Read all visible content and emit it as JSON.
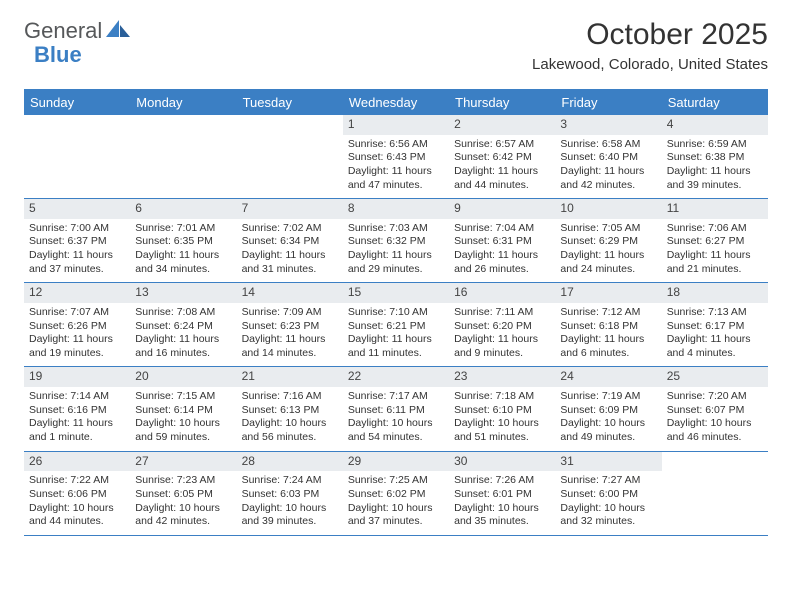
{
  "brand": {
    "name_part1": "General",
    "name_part2": "Blue"
  },
  "title": "October 2025",
  "location": "Lakewood, Colorado, United States",
  "colors": {
    "accent": "#3b7fc4",
    "text": "#333333",
    "daybar": "#e9ecef",
    "logo_gray": "#56585a"
  },
  "day_headers": [
    "Sunday",
    "Monday",
    "Tuesday",
    "Wednesday",
    "Thursday",
    "Friday",
    "Saturday"
  ],
  "weeks": [
    [
      {
        "day": "",
        "lines": []
      },
      {
        "day": "",
        "lines": []
      },
      {
        "day": "",
        "lines": []
      },
      {
        "day": "1",
        "lines": [
          "Sunrise: 6:56 AM",
          "Sunset: 6:43 PM",
          "Daylight: 11 hours",
          "and 47 minutes."
        ]
      },
      {
        "day": "2",
        "lines": [
          "Sunrise: 6:57 AM",
          "Sunset: 6:42 PM",
          "Daylight: 11 hours",
          "and 44 minutes."
        ]
      },
      {
        "day": "3",
        "lines": [
          "Sunrise: 6:58 AM",
          "Sunset: 6:40 PM",
          "Daylight: 11 hours",
          "and 42 minutes."
        ]
      },
      {
        "day": "4",
        "lines": [
          "Sunrise: 6:59 AM",
          "Sunset: 6:38 PM",
          "Daylight: 11 hours",
          "and 39 minutes."
        ]
      }
    ],
    [
      {
        "day": "5",
        "lines": [
          "Sunrise: 7:00 AM",
          "Sunset: 6:37 PM",
          "Daylight: 11 hours",
          "and 37 minutes."
        ]
      },
      {
        "day": "6",
        "lines": [
          "Sunrise: 7:01 AM",
          "Sunset: 6:35 PM",
          "Daylight: 11 hours",
          "and 34 minutes."
        ]
      },
      {
        "day": "7",
        "lines": [
          "Sunrise: 7:02 AM",
          "Sunset: 6:34 PM",
          "Daylight: 11 hours",
          "and 31 minutes."
        ]
      },
      {
        "day": "8",
        "lines": [
          "Sunrise: 7:03 AM",
          "Sunset: 6:32 PM",
          "Daylight: 11 hours",
          "and 29 minutes."
        ]
      },
      {
        "day": "9",
        "lines": [
          "Sunrise: 7:04 AM",
          "Sunset: 6:31 PM",
          "Daylight: 11 hours",
          "and 26 minutes."
        ]
      },
      {
        "day": "10",
        "lines": [
          "Sunrise: 7:05 AM",
          "Sunset: 6:29 PM",
          "Daylight: 11 hours",
          "and 24 minutes."
        ]
      },
      {
        "day": "11",
        "lines": [
          "Sunrise: 7:06 AM",
          "Sunset: 6:27 PM",
          "Daylight: 11 hours",
          "and 21 minutes."
        ]
      }
    ],
    [
      {
        "day": "12",
        "lines": [
          "Sunrise: 7:07 AM",
          "Sunset: 6:26 PM",
          "Daylight: 11 hours",
          "and 19 minutes."
        ]
      },
      {
        "day": "13",
        "lines": [
          "Sunrise: 7:08 AM",
          "Sunset: 6:24 PM",
          "Daylight: 11 hours",
          "and 16 minutes."
        ]
      },
      {
        "day": "14",
        "lines": [
          "Sunrise: 7:09 AM",
          "Sunset: 6:23 PM",
          "Daylight: 11 hours",
          "and 14 minutes."
        ]
      },
      {
        "day": "15",
        "lines": [
          "Sunrise: 7:10 AM",
          "Sunset: 6:21 PM",
          "Daylight: 11 hours",
          "and 11 minutes."
        ]
      },
      {
        "day": "16",
        "lines": [
          "Sunrise: 7:11 AM",
          "Sunset: 6:20 PM",
          "Daylight: 11 hours",
          "and 9 minutes."
        ]
      },
      {
        "day": "17",
        "lines": [
          "Sunrise: 7:12 AM",
          "Sunset: 6:18 PM",
          "Daylight: 11 hours",
          "and 6 minutes."
        ]
      },
      {
        "day": "18",
        "lines": [
          "Sunrise: 7:13 AM",
          "Sunset: 6:17 PM",
          "Daylight: 11 hours",
          "and 4 minutes."
        ]
      }
    ],
    [
      {
        "day": "19",
        "lines": [
          "Sunrise: 7:14 AM",
          "Sunset: 6:16 PM",
          "Daylight: 11 hours",
          "and 1 minute."
        ]
      },
      {
        "day": "20",
        "lines": [
          "Sunrise: 7:15 AM",
          "Sunset: 6:14 PM",
          "Daylight: 10 hours",
          "and 59 minutes."
        ]
      },
      {
        "day": "21",
        "lines": [
          "Sunrise: 7:16 AM",
          "Sunset: 6:13 PM",
          "Daylight: 10 hours",
          "and 56 minutes."
        ]
      },
      {
        "day": "22",
        "lines": [
          "Sunrise: 7:17 AM",
          "Sunset: 6:11 PM",
          "Daylight: 10 hours",
          "and 54 minutes."
        ]
      },
      {
        "day": "23",
        "lines": [
          "Sunrise: 7:18 AM",
          "Sunset: 6:10 PM",
          "Daylight: 10 hours",
          "and 51 minutes."
        ]
      },
      {
        "day": "24",
        "lines": [
          "Sunrise: 7:19 AM",
          "Sunset: 6:09 PM",
          "Daylight: 10 hours",
          "and 49 minutes."
        ]
      },
      {
        "day": "25",
        "lines": [
          "Sunrise: 7:20 AM",
          "Sunset: 6:07 PM",
          "Daylight: 10 hours",
          "and 46 minutes."
        ]
      }
    ],
    [
      {
        "day": "26",
        "lines": [
          "Sunrise: 7:22 AM",
          "Sunset: 6:06 PM",
          "Daylight: 10 hours",
          "and 44 minutes."
        ]
      },
      {
        "day": "27",
        "lines": [
          "Sunrise: 7:23 AM",
          "Sunset: 6:05 PM",
          "Daylight: 10 hours",
          "and 42 minutes."
        ]
      },
      {
        "day": "28",
        "lines": [
          "Sunrise: 7:24 AM",
          "Sunset: 6:03 PM",
          "Daylight: 10 hours",
          "and 39 minutes."
        ]
      },
      {
        "day": "29",
        "lines": [
          "Sunrise: 7:25 AM",
          "Sunset: 6:02 PM",
          "Daylight: 10 hours",
          "and 37 minutes."
        ]
      },
      {
        "day": "30",
        "lines": [
          "Sunrise: 7:26 AM",
          "Sunset: 6:01 PM",
          "Daylight: 10 hours",
          "and 35 minutes."
        ]
      },
      {
        "day": "31",
        "lines": [
          "Sunrise: 7:27 AM",
          "Sunset: 6:00 PM",
          "Daylight: 10 hours",
          "and 32 minutes."
        ]
      },
      {
        "day": "",
        "lines": []
      }
    ]
  ]
}
